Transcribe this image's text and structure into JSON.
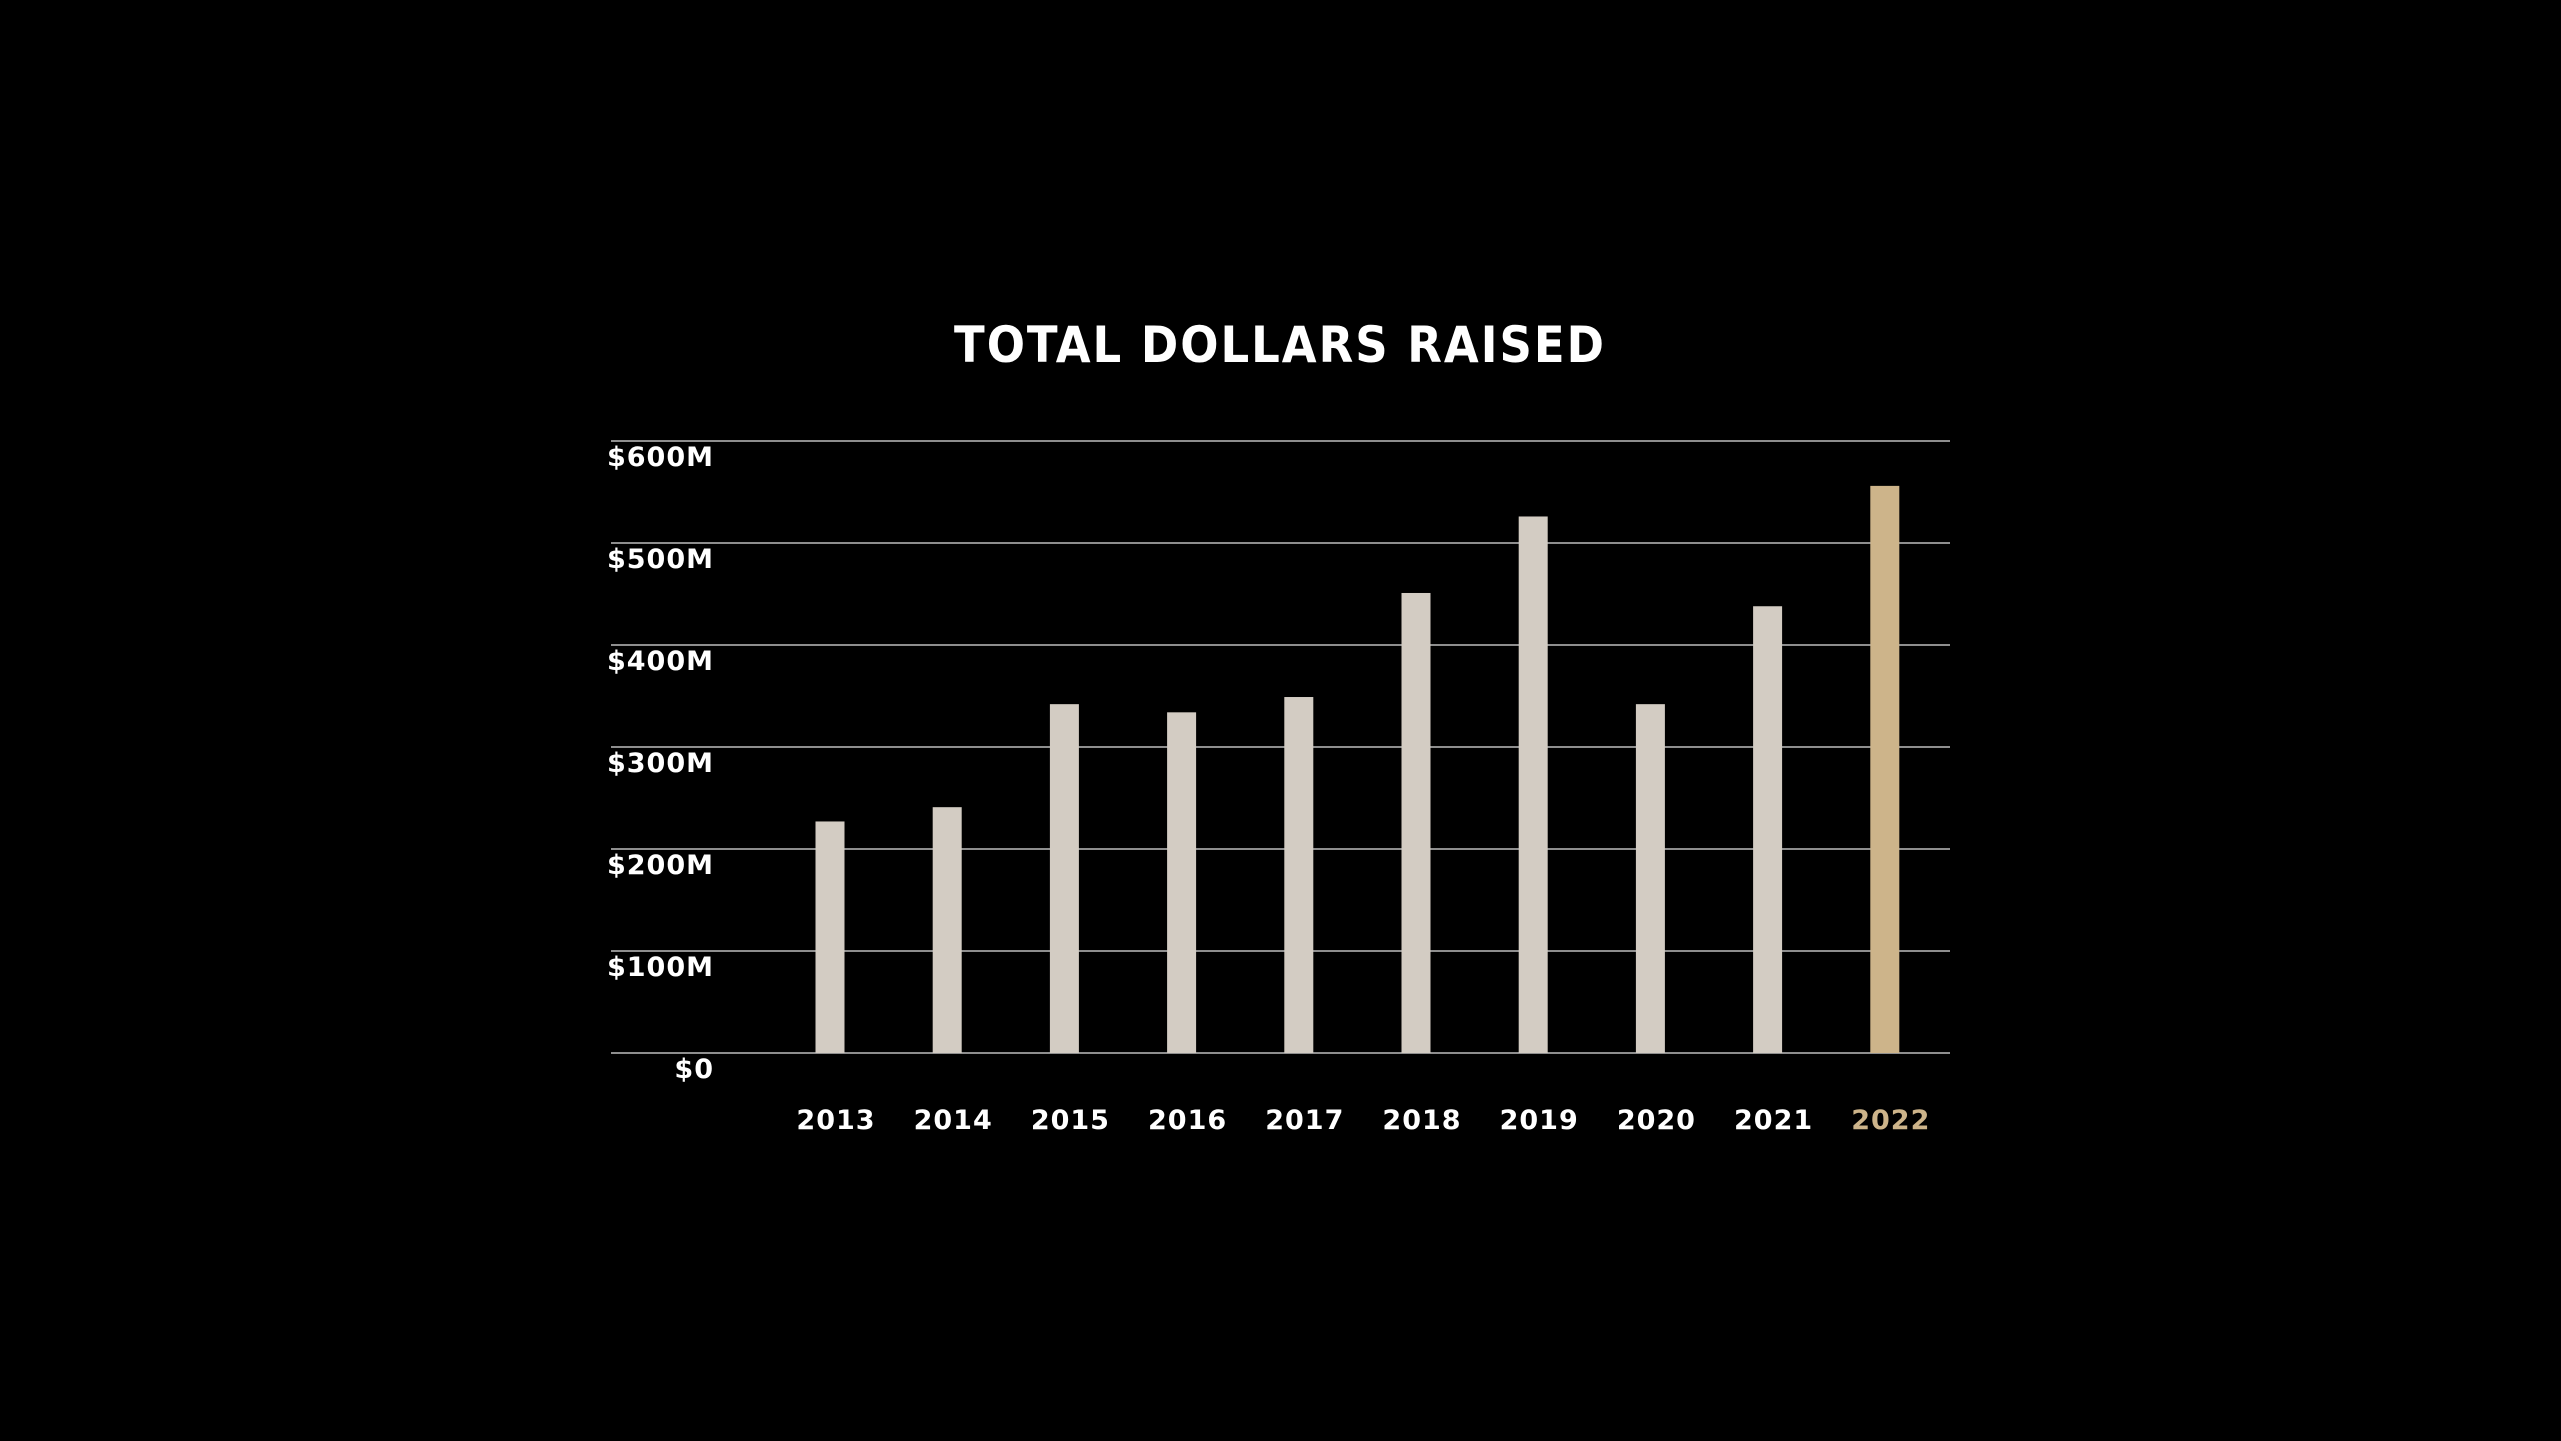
{
  "chart_data": {
    "type": "bar",
    "title": "TOTAL DOLLARS RAISED",
    "xlabel": "",
    "ylabel": "",
    "categories": [
      "2013",
      "2014",
      "2015",
      "2016",
      "2017",
      "2018",
      "2019",
      "2020",
      "2021",
      "2022"
    ],
    "values": [
      227,
      241,
      342,
      334,
      349,
      451,
      526,
      342,
      438,
      556
    ],
    "units": "$M",
    "ylim": [
      0,
      600
    ],
    "yticks": [
      0,
      100,
      200,
      300,
      400,
      500,
      600
    ],
    "ytick_labels": [
      "$0",
      "$100M",
      "$200M",
      "$300M",
      "$400M",
      "$500M",
      "$600M"
    ],
    "grid": true,
    "legend": "none",
    "highlight_category": "2022",
    "colors": {
      "background": "#000000",
      "bar": "#d3ccc3",
      "highlight_bar": "#cdb48a",
      "highlight_label": "#cdb48a",
      "text": "#ffffff",
      "gridline": "#bdbdbd"
    }
  }
}
